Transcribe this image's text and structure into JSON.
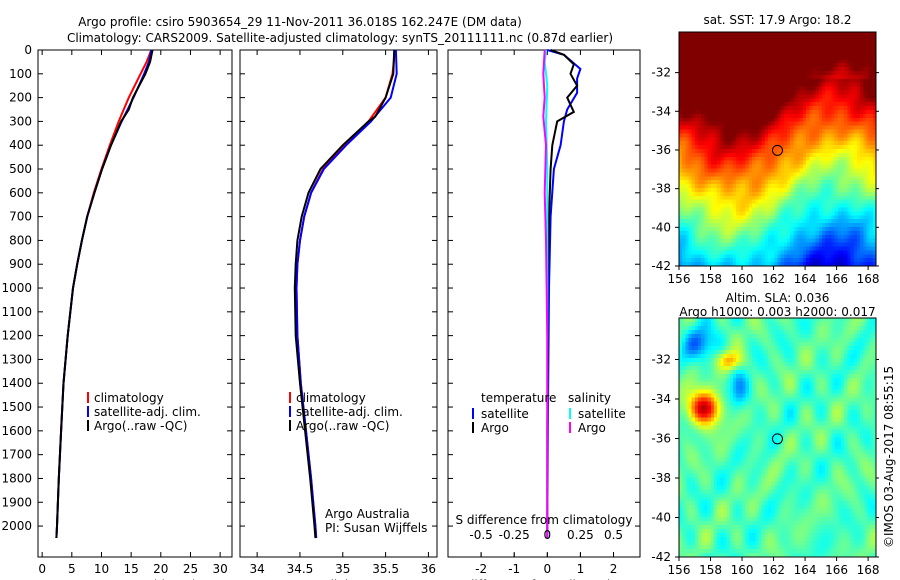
{
  "title_line1": "Argo profile: csiro 5903654_29 11-Nov-2011 36.018S 162.247E (DM data)",
  "title_line2": "Climatology: CARS2009. Satellite-adjusted climatology: synTS_20111111.nc (0.87d earlier)",
  "credit": "Argo Australia",
  "pi": "PI: Susan Wijffels",
  "timestamp": "©IMOS 03-Aug-2017 08:55:15",
  "chart_data": [
    {
      "type": "line",
      "name": "temperature",
      "xlabel": "temperature (deg C)",
      "xlim": [
        -0.7,
        32
      ],
      "ylim": [
        0,
        2130
      ],
      "xticks": [
        0,
        5,
        10,
        15,
        20,
        25,
        30
      ],
      "yticks": [
        0,
        100,
        200,
        300,
        400,
        500,
        600,
        700,
        800,
        900,
        1000,
        1100,
        1200,
        1300,
        1400,
        1500,
        1600,
        1700,
        1800,
        1900,
        2000
      ],
      "legend": [
        "climatology",
        "satellite-adj. clim.",
        "Argo(..raw -QC)"
      ],
      "series": [
        {
          "name": "climatology",
          "color": "#ff0000",
          "points": [
            [
              0,
              18.4
            ],
            [
              50,
              17.6
            ],
            [
              100,
              16.6
            ],
            [
              200,
              14.6
            ],
            [
              300,
              12.9
            ],
            [
              400,
              11.4
            ],
            [
              500,
              10.0
            ],
            [
              600,
              8.7
            ],
            [
              700,
              7.6
            ],
            [
              800,
              6.7
            ],
            [
              900,
              5.9
            ],
            [
              1000,
              5.2
            ],
            [
              1200,
              4.3
            ],
            [
              1400,
              3.6
            ],
            [
              1600,
              3.2
            ],
            [
              1800,
              2.8
            ],
            [
              2000,
              2.5
            ],
            [
              2050,
              2.4
            ]
          ]
        },
        {
          "name": "satellite-adj. clim.",
          "color": "#0000ff",
          "points": [
            [
              0,
              18.4
            ],
            [
              50,
              18.0
            ],
            [
              100,
              17.2
            ],
            [
              200,
              15.4
            ],
            [
              300,
              13.4
            ],
            [
              400,
              11.6
            ],
            [
              500,
              10.1
            ],
            [
              600,
              8.8
            ],
            [
              700,
              7.6
            ],
            [
              800,
              6.7
            ],
            [
              900,
              5.9
            ],
            [
              1000,
              5.2
            ],
            [
              1200,
              4.3
            ],
            [
              1400,
              3.6
            ],
            [
              1600,
              3.2
            ],
            [
              1800,
              2.8
            ],
            [
              2000,
              2.5
            ],
            [
              2050,
              2.4
            ]
          ]
        },
        {
          "name": "Argo(..raw -QC)",
          "color": "#000000",
          "points": [
            [
              0,
              18.6
            ],
            [
              50,
              18.2
            ],
            [
              100,
              17.4
            ],
            [
              200,
              15.3
            ],
            [
              250,
              14.6
            ],
            [
              300,
              13.3
            ],
            [
              400,
              11.6
            ],
            [
              500,
              10.1
            ],
            [
              600,
              8.8
            ],
            [
              700,
              7.6
            ],
            [
              800,
              6.7
            ],
            [
              900,
              5.9
            ],
            [
              1000,
              5.2
            ],
            [
              1200,
              4.3
            ],
            [
              1400,
              3.6
            ],
            [
              1600,
              3.2
            ],
            [
              1800,
              2.8
            ],
            [
              2000,
              2.5
            ],
            [
              2050,
              2.4
            ]
          ]
        }
      ]
    },
    {
      "type": "line",
      "name": "salinity",
      "xlabel": "salinity",
      "xlim": [
        33.8,
        36.1
      ],
      "ylim": [
        0,
        2130
      ],
      "xticks": [
        34,
        34.5,
        35,
        35.5,
        36
      ],
      "legend": [
        "climatology",
        "satellite-adj. clim.",
        "Argo(..raw -QC)"
      ],
      "series": [
        {
          "name": "climatology",
          "color": "#ff0000",
          "points": [
            [
              0,
              35.61
            ],
            [
              100,
              35.58
            ],
            [
              200,
              35.5
            ],
            [
              300,
              35.3
            ],
            [
              400,
              35.02
            ],
            [
              500,
              34.77
            ],
            [
              600,
              34.63
            ],
            [
              700,
              34.55
            ],
            [
              800,
              34.5
            ],
            [
              900,
              34.47
            ],
            [
              1000,
              34.46
            ],
            [
              1200,
              34.47
            ],
            [
              1400,
              34.51
            ],
            [
              1600,
              34.57
            ],
            [
              1800,
              34.63
            ],
            [
              2000,
              34.68
            ],
            [
              2050,
              34.69
            ]
          ]
        },
        {
          "name": "satellite-adj. clim.",
          "color": "#0000ff",
          "points": [
            [
              0,
              35.62
            ],
            [
              100,
              35.63
            ],
            [
              200,
              35.56
            ],
            [
              300,
              35.33
            ],
            [
              400,
              35.04
            ],
            [
              500,
              34.78
            ],
            [
              600,
              34.63
            ],
            [
              700,
              34.55
            ],
            [
              800,
              34.5
            ],
            [
              900,
              34.47
            ],
            [
              1000,
              34.46
            ],
            [
              1200,
              34.47
            ],
            [
              1400,
              34.51
            ],
            [
              1600,
              34.57
            ],
            [
              1800,
              34.63
            ],
            [
              2000,
              34.68
            ],
            [
              2050,
              34.69
            ]
          ]
        },
        {
          "name": "Argo(..raw -QC)",
          "color": "#000000",
          "points": [
            [
              0,
              35.6
            ],
            [
              100,
              35.59
            ],
            [
              200,
              35.5
            ],
            [
              280,
              35.38
            ],
            [
              300,
              35.3
            ],
            [
              400,
              35.0
            ],
            [
              500,
              34.74
            ],
            [
              600,
              34.6
            ],
            [
              700,
              34.52
            ],
            [
              800,
              34.47
            ],
            [
              900,
              34.45
            ],
            [
              1000,
              34.44
            ],
            [
              1200,
              34.45
            ],
            [
              1400,
              34.5
            ],
            [
              1600,
              34.56
            ],
            [
              1800,
              34.62
            ],
            [
              2000,
              34.67
            ],
            [
              2050,
              34.68
            ]
          ]
        }
      ]
    },
    {
      "type": "line",
      "name": "differences",
      "xlabel": "T difference from climatology",
      "xlabel_top": "S difference from climatology",
      "xlim": [
        -3,
        2.8
      ],
      "ylim": [
        0,
        2130
      ],
      "xticks": [
        -2,
        -1,
        0,
        1,
        2
      ],
      "xticks_top": [
        -0.5,
        -0.25,
        0,
        0.25,
        0.5
      ],
      "legend_t_title": "temperature",
      "legend_s_title": "salinity",
      "legend": [
        "satellite",
        "Argo",
        "satellite",
        "Argo"
      ],
      "series": [
        {
          "name": "T satellite",
          "unit": "T",
          "color": "#0000ff",
          "points": [
            [
              0,
              0
            ],
            [
              20,
              0.5
            ],
            [
              80,
              1.0
            ],
            [
              120,
              0.9
            ],
            [
              180,
              0.9
            ],
            [
              250,
              0.6
            ],
            [
              300,
              0.5
            ],
            [
              400,
              0.4
            ],
            [
              500,
              0.2
            ],
            [
              700,
              0.1
            ],
            [
              1000,
              0.05
            ],
            [
              1500,
              0.02
            ],
            [
              2050,
              0
            ]
          ]
        },
        {
          "name": "T Argo",
          "unit": "T",
          "color": "#000000",
          "points": [
            [
              0,
              0.1
            ],
            [
              20,
              0.5
            ],
            [
              60,
              0.8
            ],
            [
              100,
              0.7
            ],
            [
              150,
              0.9
            ],
            [
              200,
              0.6
            ],
            [
              260,
              0.8
            ],
            [
              300,
              0.3
            ],
            [
              400,
              0.15
            ],
            [
              500,
              0.1
            ],
            [
              700,
              0.05
            ],
            [
              1000,
              0.0
            ],
            [
              1300,
              0.02
            ],
            [
              1600,
              0.0
            ],
            [
              2050,
              0
            ]
          ]
        },
        {
          "name": "S satellite",
          "unit": "S",
          "color": "#00ffff",
          "points": [
            [
              0,
              -0.01
            ],
            [
              50,
              -0.02
            ],
            [
              150,
              0
            ],
            [
              300,
              -0.01
            ],
            [
              500,
              0
            ],
            [
              1000,
              0
            ],
            [
              2050,
              0
            ]
          ]
        },
        {
          "name": "S Argo",
          "unit": "S",
          "color": "#ff00ff",
          "points": [
            [
              0,
              -0.02
            ],
            [
              100,
              -0.03
            ],
            [
              200,
              -0.02
            ],
            [
              280,
              -0.03
            ],
            [
              400,
              -0.01
            ],
            [
              600,
              -0.02
            ],
            [
              800,
              -0.01
            ],
            [
              1200,
              0
            ],
            [
              2050,
              0
            ]
          ]
        }
      ]
    },
    {
      "type": "heatmap",
      "name": "sst-map",
      "title": "sat. SST: 17.9 Argo: 18.2",
      "xlim": [
        156,
        168.5
      ],
      "ylim": [
        -42,
        -29.9
      ],
      "xticks": [
        156,
        158,
        160,
        162,
        164,
        166,
        168
      ],
      "yticks": [
        -32,
        -34,
        -36,
        -38,
        -40,
        -42
      ],
      "marker": [
        162.247,
        -36.018
      ]
    },
    {
      "type": "heatmap",
      "name": "sla-map",
      "title_line1": "Altim. SLA: 0.036",
      "title_line2": "Argo h1000: 0.003 h2000: 0.017",
      "xlim": [
        156,
        168.5
      ],
      "ylim": [
        -42,
        -29.9
      ],
      "xticks": [
        156,
        158,
        160,
        162,
        164,
        166,
        168
      ],
      "yticks": [
        -32,
        -34,
        -36,
        -38,
        -40,
        -42
      ],
      "marker": [
        162.247,
        -36.018
      ]
    }
  ]
}
